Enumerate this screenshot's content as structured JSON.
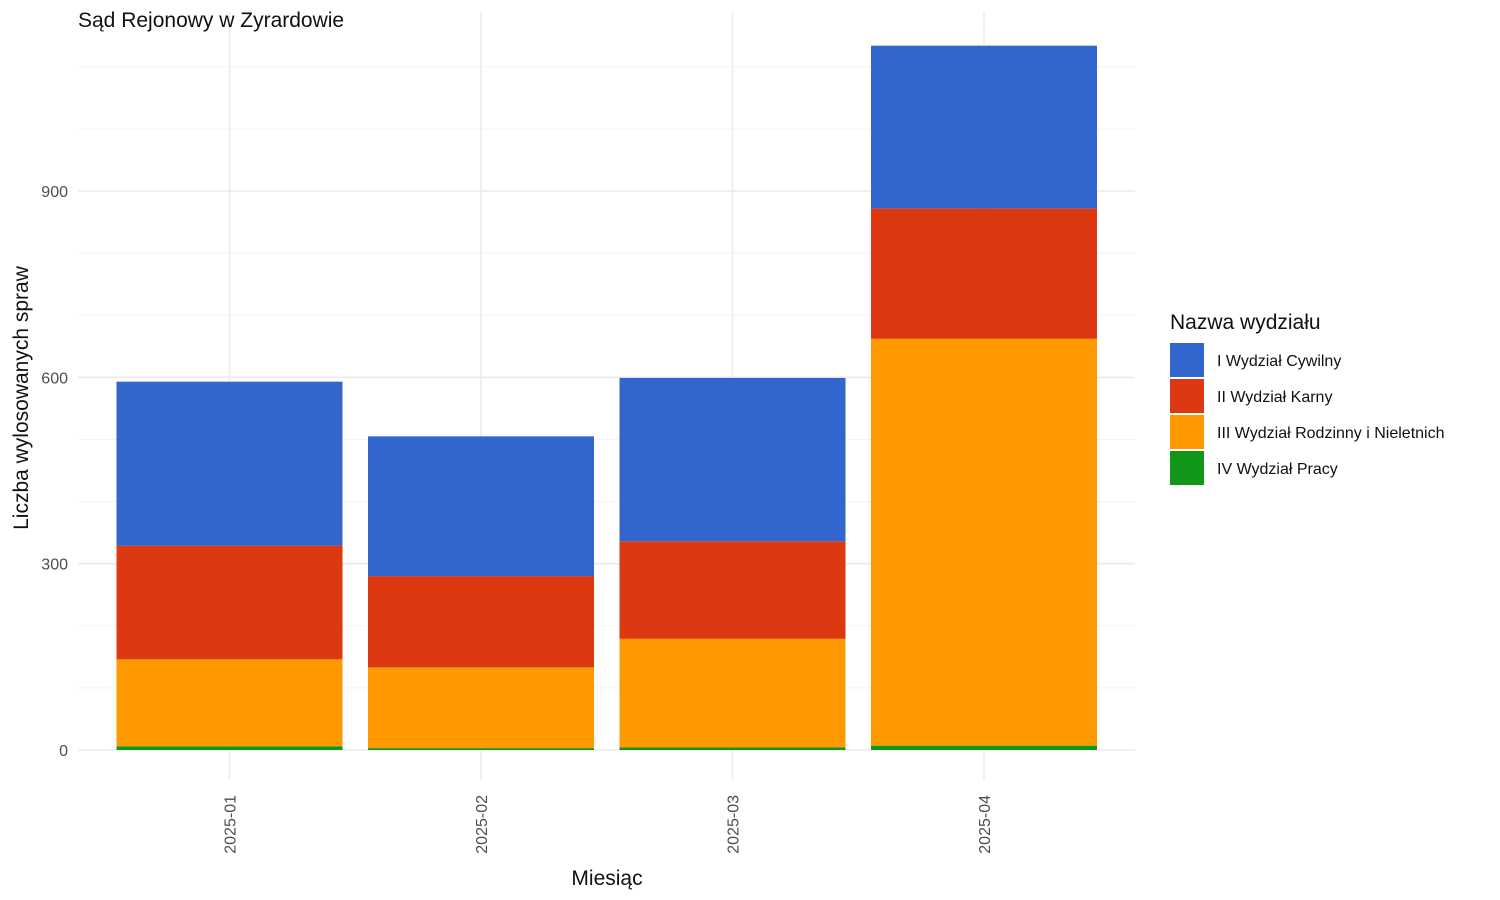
{
  "chart_data": {
    "type": "bar",
    "stacked": true,
    "title": "Sąd Rejonowy w Zyrardowie",
    "xlabel": "Miesiąc",
    "ylabel": "Liczba wylosowanych spraw",
    "categories": [
      "2025-01",
      "2025-02",
      "2025-03",
      "2025-04"
    ],
    "yticks": [
      0,
      300,
      600,
      900
    ],
    "ylim": [
      -45,
      1185
    ],
    "grid": true,
    "legend": {
      "title": "Nazwa wydziału",
      "position": "right"
    },
    "series": [
      {
        "name": "IV Wydział Pracy",
        "color": "#109618",
        "values": [
          6,
          3,
          4,
          7
        ]
      },
      {
        "name": "III Wydział Rodzinny i Nieletnich",
        "color": "#FF9900",
        "values": [
          140,
          130,
          175,
          655
        ]
      },
      {
        "name": "II Wydział Karny",
        "color": "#DC3912",
        "values": [
          183,
          147,
          157,
          210
        ]
      },
      {
        "name": "I Wydział Cywilny",
        "color": "#3366CC",
        "values": [
          264,
          225,
          263,
          262
        ]
      }
    ],
    "legend_order": [
      "I Wydział Cywilny",
      "II Wydział Karny",
      "III Wydział Rodzinny i Nieletnich",
      "IV Wydział Pracy"
    ]
  }
}
